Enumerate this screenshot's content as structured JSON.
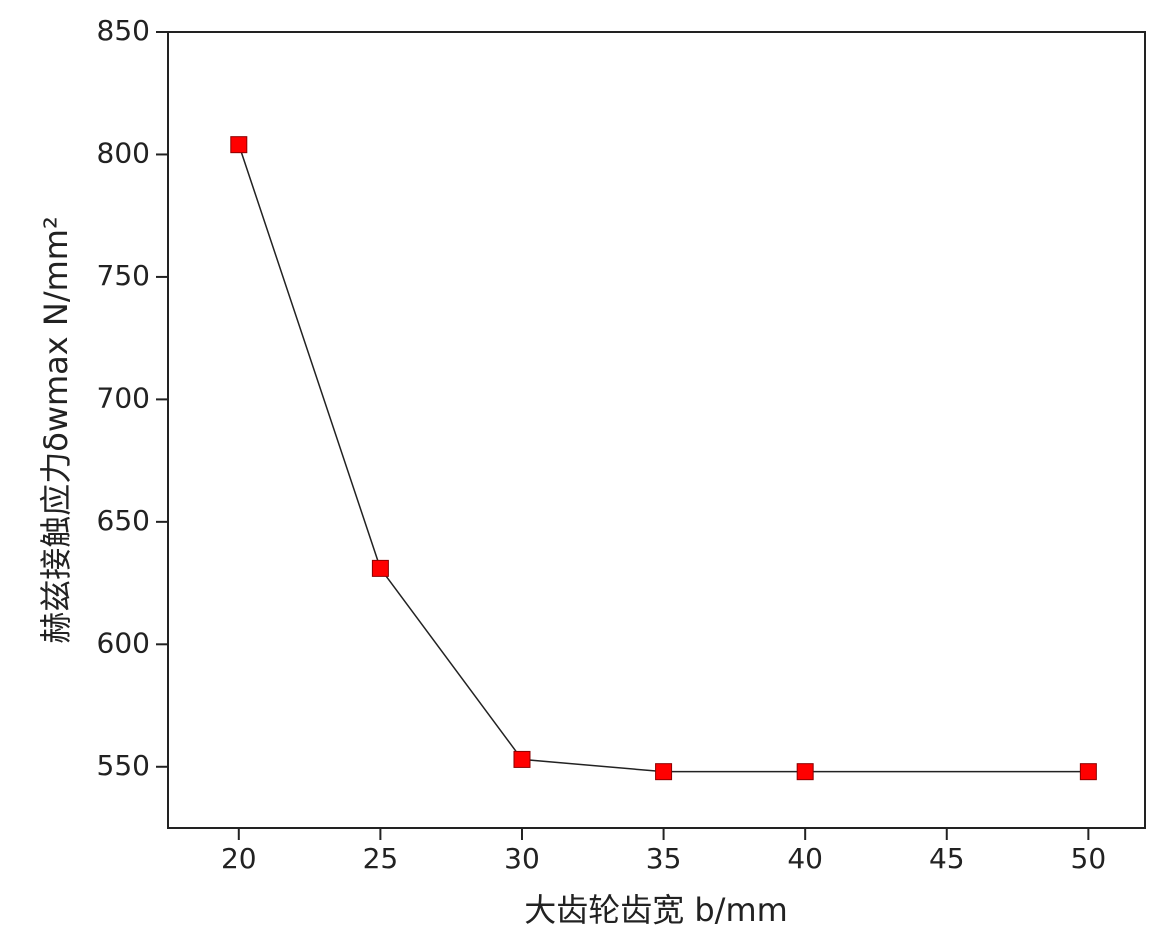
{
  "chart_data": {
    "type": "line",
    "x_label": "大齿轮齿宽 b/mm",
    "y_label": "赫兹接触应力δwmax N/mm²",
    "x": [
      20,
      25,
      30,
      35,
      40,
      50
    ],
    "series": [
      {
        "color": "#ff0000",
        "values": [
          804,
          631,
          553,
          548,
          548,
          548
        ]
      }
    ],
    "xlim": [
      17.5,
      52
    ],
    "ylim": [
      525,
      850
    ],
    "xticks": [
      20,
      25,
      30,
      35,
      40,
      45,
      50
    ],
    "yticks": [
      550,
      600,
      650,
      700,
      750,
      800,
      850
    ]
  }
}
